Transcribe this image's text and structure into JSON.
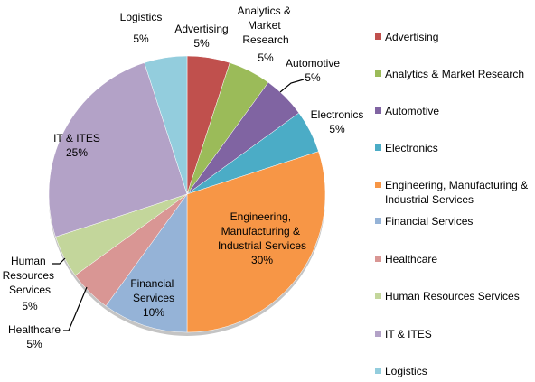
{
  "chart_data": {
    "type": "pie",
    "categories": [
      "Advertising",
      "Analytics & Market Research",
      "Automotive",
      "Electronics",
      "Engineering, Manufacturing & Industrial Services",
      "Financial Services",
      "Healthcare",
      "Human Resources Services",
      "IT & ITES",
      "Logistics"
    ],
    "values": [
      5,
      5,
      5,
      5,
      30,
      10,
      5,
      5,
      25,
      5
    ],
    "value_labels": [
      "5%",
      "5%",
      "5%",
      "5%",
      "30%",
      "10%",
      "5%",
      "5%",
      "25%",
      "5%"
    ],
    "colors": [
      "#c0504d",
      "#9bbb59",
      "#8064a2",
      "#4bacc6",
      "#f79646",
      "#95b3d7",
      "#d99694",
      "#c3d69b",
      "#b3a2c7",
      "#93cddd"
    ],
    "legend": "right"
  }
}
